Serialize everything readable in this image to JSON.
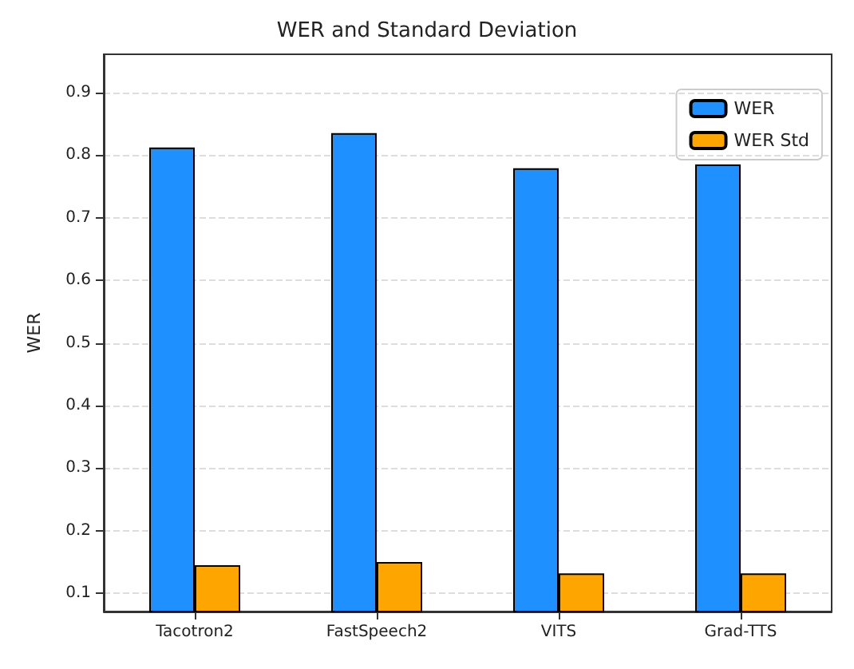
{
  "chart_data": {
    "type": "bar",
    "title": "WER and Standard Deviation",
    "ylabel": "WER",
    "categories": [
      "Tacotron2",
      "FastSpeech2",
      "VITS",
      "Grad-TTS"
    ],
    "series": [
      {
        "name": "WER",
        "color": "#1e90ff",
        "values": [
          0.812,
          0.835,
          0.779,
          0.785
        ]
      },
      {
        "name": "WER Std",
        "color": "#ffa500",
        "values": [
          0.145,
          0.15,
          0.132,
          0.132
        ]
      }
    ],
    "ylim": [
      0.071,
      0.961
    ],
    "yticks": [
      0.1,
      0.2,
      0.3,
      0.4,
      0.5,
      0.6,
      0.7,
      0.8,
      0.9
    ],
    "grid": "y",
    "legend": "top right"
  }
}
